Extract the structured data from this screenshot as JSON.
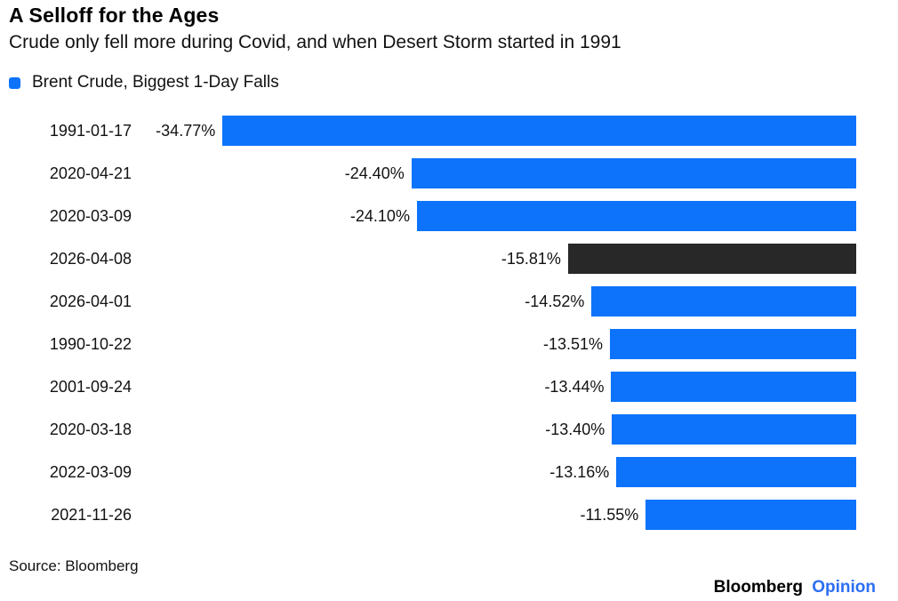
{
  "header": {
    "title": "A Selloff for the Ages",
    "subtitle": "Crude only fell more during Covid, and when Desert Storm started in 1991"
  },
  "legend": {
    "label": "Brent Crude, Biggest 1-Day Falls"
  },
  "colors": {
    "bar_blue": "#0d73fb",
    "bar_highlight": "#282828",
    "opinion_blue": "#2b6ff2"
  },
  "chart_data": {
    "type": "bar",
    "orientation": "horizontal",
    "title": "A Selloff for the Ages",
    "subtitle": "Crude only fell more during Covid, and when Desert Storm started in 1991",
    "legend_entries": [
      "Brent Crude, Biggest 1-Day Falls"
    ],
    "categories": [
      "1991-01-17",
      "2020-04-21",
      "2020-03-09",
      "2026-04-08",
      "2026-04-01",
      "1990-10-22",
      "2001-09-24",
      "2020-03-18",
      "2022-03-09",
      "2021-11-26"
    ],
    "values": [
      -34.77,
      -24.4,
      -24.1,
      -15.81,
      -14.52,
      -13.51,
      -13.44,
      -13.4,
      -13.16,
      -11.55
    ],
    "value_labels": [
      "-34.77%",
      "-24.40%",
      "-24.10%",
      "-15.81%",
      "-14.52%",
      "-13.51%",
      "-13.44%",
      "-13.40%",
      "-13.16%",
      "-11.55%"
    ],
    "highlighted_index": 3,
    "xlim": [
      -35,
      0
    ],
    "grid": false,
    "legend_position": "top-left",
    "bars_anchored": "right"
  },
  "footer": {
    "source": "Source: Bloomberg",
    "brand_name": "Bloomberg",
    "brand_section": "Opinion"
  }
}
